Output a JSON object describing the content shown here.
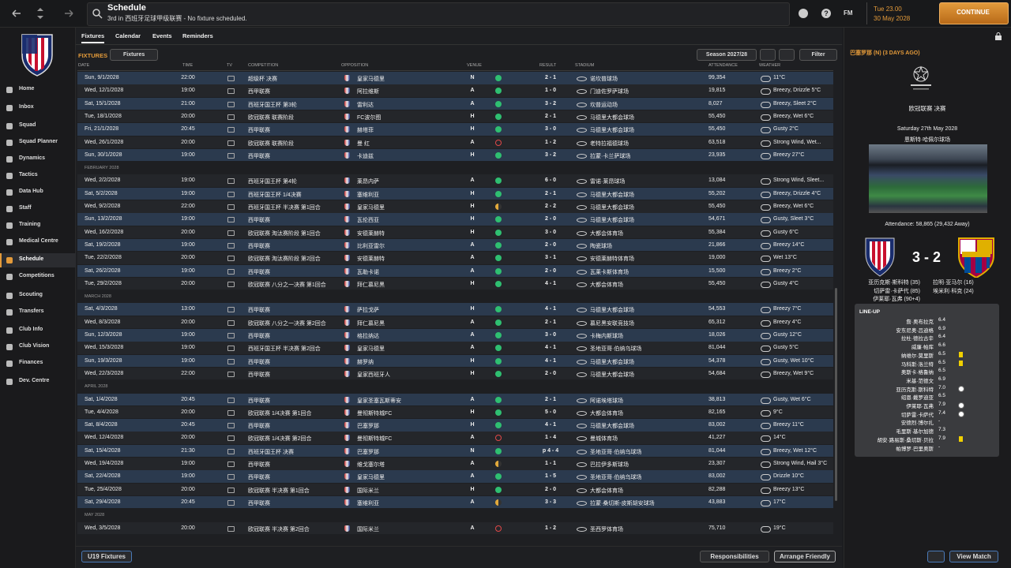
{
  "topbar": {
    "title": "Schedule",
    "subtitle": "3rd in 西班牙足球甲级联赛 - No fixture scheduled.",
    "brand": "FM",
    "time": "Tue 23.00",
    "date": "30 May 2028",
    "continue": "CONTINUE"
  },
  "sidebar": {
    "items": [
      "Home",
      "Inbox",
      "Squad",
      "Squad Planner",
      "Dynamics",
      "Tactics",
      "Data Hub",
      "Staff",
      "Training",
      "Medical Centre",
      "Schedule",
      "Competitions",
      "Scouting",
      "Transfers",
      "Club Info",
      "Club Vision",
      "Finances",
      "Dev. Centre"
    ],
    "active": 10
  },
  "tabs": {
    "items": [
      "Fixtures",
      "Calendar",
      "Events",
      "Reminders"
    ],
    "active": 0
  },
  "toolbar": {
    "section": "FIXTURES",
    "view": "Fixtures",
    "season": "Season 2027/28",
    "filter": "Filter"
  },
  "table": {
    "columns": [
      "DATE",
      "TIME",
      "TV",
      "COMPETITION",
      "OPPOSITION",
      "VENUE",
      "RESULT",
      "STADIUM",
      "ATTENDANCE",
      "WEATHER"
    ],
    "rows": [
      {
        "date": "Sun, 9/1/2028",
        "time": "22:00",
        "competition": "超级杯 决赛",
        "opposition": "皇家马德里",
        "venue": "N",
        "outcome": "win",
        "result": "2 - 1",
        "stadium": "诺坎普球场",
        "attendance": "99,354",
        "weather": "11°C"
      },
      {
        "date": "Wed, 12/1/2028",
        "time": "19:00",
        "competition": "西甲联赛",
        "opposition": "阿拉维斯",
        "venue": "A",
        "outcome": "win",
        "result": "1 - 0",
        "stadium": "门迪佐罗萨球场",
        "attendance": "19,815",
        "weather": "Breezy, Drizzle 5°C"
      },
      {
        "date": "Sat, 15/1/2028",
        "time": "21:00",
        "competition": "西班牙国王杯 第3轮",
        "opposition": "雷利达",
        "venue": "A",
        "outcome": "win",
        "result": "3 - 2",
        "stadium": "坎普运动场",
        "attendance": "8,027",
        "weather": "Breezy, Sleet 2°C"
      },
      {
        "date": "Tue, 18/1/2028",
        "time": "20:00",
        "competition": "欧冠联赛 联赛阶段",
        "opposition": "FC波尔图",
        "venue": "H",
        "outcome": "win",
        "result": "2 - 1",
        "stadium": "马德里大都会球场",
        "attendance": "55,450",
        "weather": "Breezy, Wet 6°C"
      },
      {
        "date": "Fri, 21/1/2028",
        "time": "20:45",
        "competition": "西甲联赛",
        "opposition": "赫塔菲",
        "venue": "H",
        "outcome": "win",
        "result": "3 - 0",
        "stadium": "马德里大都会球场",
        "attendance": "55,450",
        "weather": "Gusty 2°C"
      },
      {
        "date": "Wed, 26/1/2028",
        "time": "20:00",
        "competition": "欧冠联赛 联赛阶段",
        "opposition": "曼 红",
        "venue": "A",
        "outcome": "loss",
        "result": "1 - 2",
        "stadium": "老特拉福德球场",
        "attendance": "63,518",
        "weather": "Strong Wind, Wet..."
      },
      {
        "date": "Sun, 30/1/2028",
        "time": "19:00",
        "competition": "西甲联赛",
        "opposition": "卡迪兹",
        "venue": "H",
        "outcome": "win",
        "result": "3 - 2",
        "stadium": "拉蒙·卡兰萨球场",
        "attendance": "23,935",
        "weather": "Breezy 27°C"
      },
      {
        "month": "FEBRUARY 2028"
      },
      {
        "date": "Wed, 2/2/2028",
        "time": "19:00",
        "competition": "西班牙国王杯 第4轮",
        "opposition": "莱昂内萨",
        "venue": "A",
        "outcome": "win",
        "result": "6 - 0",
        "stadium": "雷诺·莱昂球场",
        "attendance": "13,084",
        "weather": "Strong Wind, Sleet..."
      },
      {
        "date": "Sat, 5/2/2028",
        "time": "19:00",
        "competition": "西班牙国王杯 1/4决赛",
        "opposition": "塞维利亚",
        "venue": "H",
        "outcome": "win",
        "result": "2 - 1",
        "stadium": "马德里大都会球场",
        "attendance": "55,202",
        "weather": "Breezy, Drizzle 4°C"
      },
      {
        "date": "Wed, 9/2/2028",
        "time": "22:00",
        "competition": "西班牙国王杯 半决赛 第1回合",
        "opposition": "皇家马德里",
        "venue": "H",
        "outcome": "draw",
        "result": "2 - 2",
        "stadium": "马德里大都会球场",
        "attendance": "55,450",
        "weather": "Breezy, Wet 6°C"
      },
      {
        "date": "Sun, 13/2/2028",
        "time": "19:00",
        "competition": "西甲联赛",
        "opposition": "瓦伦西亚",
        "venue": "H",
        "outcome": "win",
        "result": "2 - 0",
        "stadium": "马德里大都会球场",
        "attendance": "54,671",
        "weather": "Gusty, Sleet 3°C"
      },
      {
        "date": "Wed, 16/2/2028",
        "time": "20:00",
        "competition": "欧冠联赛 淘汰赛阶段 第1回合",
        "opposition": "安德莱赫特",
        "venue": "H",
        "outcome": "win",
        "result": "3 - 0",
        "stadium": "大都会体育场",
        "attendance": "55,384",
        "weather": "Gusty 6°C"
      },
      {
        "date": "Sat, 19/2/2028",
        "time": "19:00",
        "competition": "西甲联赛",
        "opposition": "比利亚雷尔",
        "venue": "A",
        "outcome": "win",
        "result": "2 - 0",
        "stadium": "陶瓷球场",
        "attendance": "21,866",
        "weather": "Breezy 14°C"
      },
      {
        "date": "Tue, 22/2/2028",
        "time": "20:00",
        "competition": "欧冠联赛 淘汰赛阶段 第2回合",
        "opposition": "安德莱赫特",
        "venue": "A",
        "outcome": "win",
        "result": "3 - 1",
        "stadium": "安德莱赫特体育场",
        "attendance": "19,000",
        "weather": "Wet 13°C"
      },
      {
        "date": "Sat, 26/2/2028",
        "time": "19:00",
        "competition": "西甲联赛",
        "opposition": "瓦勒卡诺",
        "venue": "A",
        "outcome": "win",
        "result": "2 - 0",
        "stadium": "瓦莱卡斯体育场",
        "attendance": "15,500",
        "weather": "Breezy 2°C"
      },
      {
        "date": "Tue, 29/2/2028",
        "time": "20:00",
        "competition": "欧冠联赛 八分之一决赛 第1回合",
        "opposition": "拜仁慕尼黑",
        "venue": "H",
        "outcome": "win",
        "result": "4 - 1",
        "stadium": "大都会体育场",
        "attendance": "55,450",
        "weather": "Gusty 4°C"
      },
      {
        "month": "MARCH 2028"
      },
      {
        "date": "Sat, 4/3/2028",
        "time": "13:00",
        "competition": "西甲联赛",
        "opposition": "萨拉戈萨",
        "venue": "H",
        "outcome": "win",
        "result": "4 - 1",
        "stadium": "马德里大都会球场",
        "attendance": "54,553",
        "weather": "Breezy 7°C"
      },
      {
        "date": "Wed, 8/3/2028",
        "time": "20:00",
        "competition": "欧冠联赛 八分之一决赛 第2回合",
        "opposition": "拜仁慕尼黑",
        "venue": "A",
        "outcome": "win",
        "result": "2 - 1",
        "stadium": "慕尼黑安联竞技场",
        "attendance": "65,312",
        "weather": "Breezy 4°C"
      },
      {
        "date": "Sun, 12/3/2028",
        "time": "19:00",
        "competition": "西甲联赛",
        "opposition": "格拉纳达",
        "venue": "A",
        "outcome": "win",
        "result": "3 - 0",
        "stadium": "卡梅内斯球场",
        "attendance": "18,026",
        "weather": "Gusty 12°C"
      },
      {
        "date": "Wed, 15/3/2028",
        "time": "19:00",
        "competition": "西班牙国王杯 半决赛 第2回合",
        "opposition": "皇家马德里",
        "venue": "A",
        "outcome": "win",
        "result": "4 - 1",
        "stadium": "圣地亚哥·伯纳乌球场",
        "attendance": "81,044",
        "weather": "Gusty 5°C"
      },
      {
        "date": "Sun, 19/3/2028",
        "time": "19:00",
        "competition": "西甲联赛",
        "opposition": "赫罗纳",
        "venue": "H",
        "outcome": "win",
        "result": "4 - 1",
        "stadium": "马德里大都会球场",
        "attendance": "54,378",
        "weather": "Gusty, Wet 10°C"
      },
      {
        "date": "Wed, 22/3/2028",
        "time": "22:00",
        "competition": "西甲联赛",
        "opposition": "皇家西班牙人",
        "venue": "H",
        "outcome": "win",
        "result": "2 - 0",
        "stadium": "马德里大都会球场",
        "attendance": "54,684",
        "weather": "Breezy, Wet 9°C"
      },
      {
        "month": "APRIL 2028"
      },
      {
        "date": "Sat, 1/4/2028",
        "time": "20:45",
        "competition": "西甲联赛",
        "opposition": "皇家圣塞瓦斯蒂安",
        "venue": "A",
        "outcome": "win",
        "result": "2 - 1",
        "stadium": "阿诺埃塔球场",
        "attendance": "38,813",
        "weather": "Gusty, Wet 6°C"
      },
      {
        "date": "Tue, 4/4/2028",
        "time": "20:00",
        "competition": "欧冠联赛 1/4决赛 第1回合",
        "opposition": "曼彻斯特城FC",
        "venue": "H",
        "outcome": "win",
        "result": "5 - 0",
        "stadium": "大都会体育场",
        "attendance": "82,165",
        "weather": "9°C"
      },
      {
        "date": "Sat, 8/4/2028",
        "time": "20:45",
        "competition": "西甲联赛",
        "opposition": "巴塞罗那",
        "venue": "H",
        "outcome": "win",
        "result": "4 - 1",
        "stadium": "马德里大都会球场",
        "attendance": "83,002",
        "weather": "Breezy 11°C"
      },
      {
        "date": "Wed, 12/4/2028",
        "time": "20:00",
        "competition": "欧冠联赛 1/4决赛 第2回合",
        "opposition": "曼彻斯特城FC",
        "venue": "A",
        "outcome": "loss",
        "result": "1 - 4",
        "stadium": "曼城体育场",
        "attendance": "41,227",
        "weather": "14°C"
      },
      {
        "date": "Sat, 15/4/2028",
        "time": "21:30",
        "competition": "西班牙国王杯 决赛",
        "opposition": "巴塞罗那",
        "venue": "N",
        "outcome": "win",
        "result": "p 4 - 4",
        "stadium": "圣地亚哥·伯纳乌球场",
        "attendance": "81,044",
        "weather": "Breezy, Wet 12°C"
      },
      {
        "date": "Wed, 19/4/2028",
        "time": "19:00",
        "competition": "西甲联赛",
        "opposition": "维戈塞尔塔",
        "venue": "A",
        "outcome": "draw",
        "result": "1 - 1",
        "stadium": "巴拉伊多斯球场",
        "attendance": "23,307",
        "weather": "Strong Wind, Hail 3°C"
      },
      {
        "date": "Sat, 22/4/2028",
        "time": "19:00",
        "competition": "西甲联赛",
        "opposition": "皇家马德里",
        "venue": "A",
        "outcome": "win",
        "result": "1 - 5",
        "stadium": "圣地亚哥·伯纳乌球场",
        "attendance": "83,002",
        "weather": "Drizzle 10°C"
      },
      {
        "date": "Tue, 25/4/2028",
        "time": "20:00",
        "competition": "欧冠联赛 半决赛 第1回合",
        "opposition": "国际米兰",
        "venue": "H",
        "outcome": "win",
        "result": "2 - 0",
        "stadium": "大都会体育场",
        "attendance": "82,288",
        "weather": "Breezy 13°C"
      },
      {
        "date": "Sat, 29/4/2028",
        "time": "20:45",
        "competition": "西甲联赛",
        "opposition": "塞维利亚",
        "venue": "A",
        "outcome": "draw",
        "result": "3 - 3",
        "stadium": "拉蒙·桑切斯-皮斯胡安球场",
        "attendance": "43,883",
        "weather": "17°C"
      },
      {
        "month": "MAY 2028"
      },
      {
        "date": "Wed, 3/5/2028",
        "time": "20:00",
        "competition": "欧冠联赛 半决赛 第2回合",
        "opposition": "国际米兰",
        "venue": "A",
        "outcome": "loss",
        "result": "1 - 2",
        "stadium": "圣西罗体育场",
        "attendance": "75,710",
        "weather": "19°C"
      }
    ]
  },
  "match": {
    "header": "巴塞罗那 (N) (3 DAYS AGO)",
    "competition": "欧冠联赛 决赛",
    "date": "Saturday 27th May 2028",
    "stadium": "恩斯特·哈佩尔球场",
    "attendance": "Attendance: 58,865 (29,432 Away)",
    "score": "3 - 2",
    "home_scorers": [
      "亚历克斯·斯科特 (35)",
      "切萨雷·卡萨代 (85)",
      "伊莱耶·瓦弗 (90+4)"
    ],
    "away_scorers": [
      "拉明·亚马尔 (16)",
      "埃米利·科克 (24)"
    ],
    "lineup_title": "LINE-UP",
    "lineup": [
      {
        "name": "詹·奥布拉克",
        "rating": "6.4"
      },
      {
        "name": "安东尼奥·吕迪格",
        "rating": "6.9"
      },
      {
        "name": "拉杜·德拉古辛",
        "rating": "6.4"
      },
      {
        "name": "威廉·帕库",
        "rating": "6.6"
      },
      {
        "name": "纳维尔·莫里斯",
        "rating": "6.5",
        "event": "yellow"
      },
      {
        "name": "马科斯·洛兰特",
        "rating": "6.5",
        "event": "yellow"
      },
      {
        "name": "奥斯卡·格鲁纳",
        "rating": "6.5"
      },
      {
        "name": "米基·范德文",
        "rating": "6.9"
      },
      {
        "name": "亚历克斯·斯科特",
        "rating": "7.0",
        "event": "goal"
      },
      {
        "name": "绍恩·戴罗迪亚",
        "rating": "6.5"
      },
      {
        "name": "伊莱耶·瓦弗",
        "rating": "7.9",
        "event": "goal"
      },
      {
        "name": "切萨雷·卡萨代",
        "rating": "7.4",
        "event": "goal"
      },
      {
        "name": "安德烈·博尔扎",
        "rating": "-"
      },
      {
        "name": "毛里斯·基尔加德",
        "rating": "7.3"
      },
      {
        "name": "胡安·路易斯·桑切斯·贝拉",
        "rating": "7.9",
        "event": "yellow"
      },
      {
        "name": "帕博罗·巴里奥斯",
        "rating": "-"
      }
    ]
  },
  "footer": {
    "u19": "U19 Fixtures",
    "responsibilities": "Responsibilities",
    "arrange": "Arrange Friendly",
    "view": "View Match"
  }
}
